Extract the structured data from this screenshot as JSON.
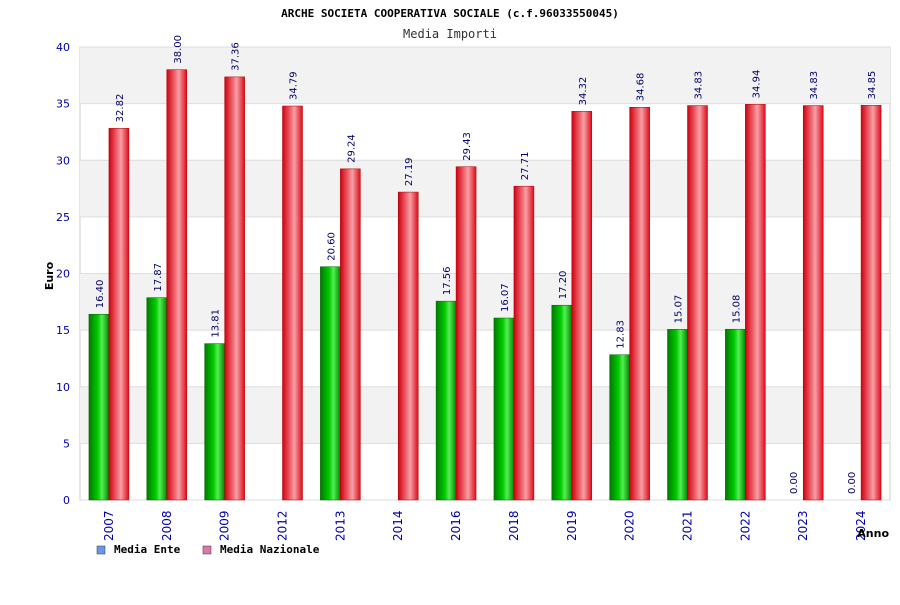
{
  "chart_data": {
    "type": "bar",
    "title": "ARCHE SOCIETA COOPERATIVA SOCIALE (c.f.96033550045)",
    "subtitle": "Media Importi",
    "xlabel": "Anno",
    "ylabel": "Euro",
    "ylim": [
      0,
      40
    ],
    "yticks": [
      "0",
      "5",
      "10",
      "15",
      "20",
      "25",
      "30",
      "35",
      "40"
    ],
    "grid": true,
    "legend_position": "bottom-left",
    "categories": [
      "2007",
      "2008",
      "2009",
      "2012",
      "2013",
      "2014",
      "2016",
      "2018",
      "2019",
      "2020",
      "2021",
      "2022",
      "2023",
      "2024"
    ],
    "series": [
      {
        "name": "Media Ente",
        "values": [
          16.4,
          17.87,
          13.81,
          null,
          20.6,
          null,
          17.56,
          16.07,
          17.2,
          12.83,
          15.07,
          15.08,
          0.0,
          0.0
        ],
        "labels": [
          "16.40",
          "17.87",
          "13.81",
          "",
          "20.60",
          "",
          "17.56",
          "16.07",
          "17.20",
          "12.83",
          "15.07",
          "15.08",
          "0.00",
          "0.00"
        ]
      },
      {
        "name": "Media Nazionale",
        "values": [
          32.82,
          38.0,
          37.36,
          34.79,
          29.24,
          27.19,
          29.43,
          27.71,
          34.32,
          34.68,
          34.83,
          34.94,
          34.83,
          34.85
        ],
        "labels": [
          "32.82",
          "38.00",
          "37.36",
          "34.79",
          "29.24",
          "27.19",
          "29.43",
          "27.71",
          "34.32",
          "34.68",
          "34.83",
          "34.94",
          "34.83",
          "34.85"
        ]
      }
    ]
  },
  "colors": {
    "ente_bar": "#00b000",
    "nazionale_bar": "#e8101c",
    "axis_text": "#0000aa",
    "legend_ente": "#6699ee",
    "legend_nazionale": "#dd77aa"
  }
}
